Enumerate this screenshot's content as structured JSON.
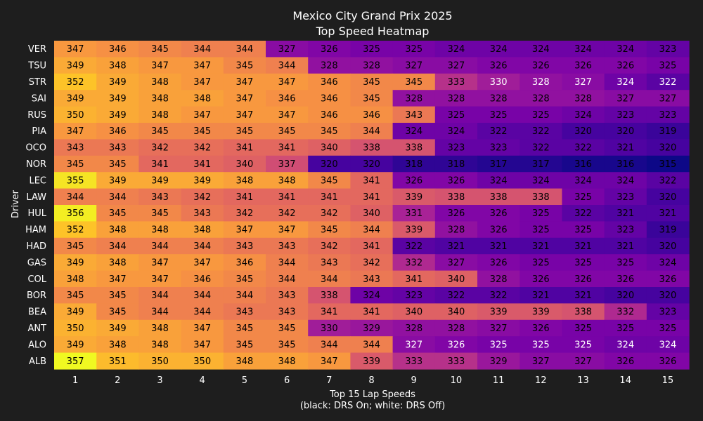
{
  "chart_data": {
    "type": "heatmap",
    "title": "Mexico City Grand Prix 2025",
    "subtitle": "Top Speed Heatmap",
    "xlabel": "Top 15 Lap Speeds",
    "xlabel_note": "(black: DRS On; white: DRS Off)",
    "ylabel": "Driver",
    "colormap": "plasma",
    "value_range": [
      315,
      357
    ],
    "x_categories": [
      "1",
      "2",
      "3",
      "4",
      "5",
      "6",
      "7",
      "8",
      "9",
      "10",
      "11",
      "12",
      "13",
      "14",
      "15"
    ],
    "y_categories": [
      "VER",
      "TSU",
      "STR",
      "SAI",
      "RUS",
      "PIA",
      "OCO",
      "NOR",
      "LEC",
      "LAW",
      "HUL",
      "HAM",
      "HAD",
      "GAS",
      "COL",
      "BOR",
      "BEA",
      "ANT",
      "ALO",
      "ALB"
    ],
    "values": [
      [
        347,
        346,
        345,
        344,
        344,
        327,
        326,
        325,
        325,
        324,
        324,
        324,
        324,
        324,
        323
      ],
      [
        349,
        348,
        347,
        347,
        345,
        344,
        328,
        328,
        327,
        327,
        326,
        326,
        326,
        326,
        325
      ],
      [
        352,
        349,
        348,
        347,
        347,
        347,
        346,
        345,
        345,
        333,
        330,
        328,
        327,
        324,
        322
      ],
      [
        349,
        349,
        348,
        348,
        347,
        346,
        346,
        345,
        328,
        328,
        328,
        328,
        328,
        327,
        327
      ],
      [
        350,
        349,
        348,
        347,
        347,
        347,
        346,
        346,
        343,
        325,
        325,
        325,
        324,
        323,
        323
      ],
      [
        347,
        346,
        345,
        345,
        345,
        345,
        345,
        344,
        324,
        324,
        322,
        322,
        320,
        320,
        319
      ],
      [
        343,
        343,
        342,
        342,
        341,
        341,
        340,
        338,
        338,
        323,
        323,
        322,
        322,
        321,
        320
      ],
      [
        345,
        345,
        341,
        341,
        340,
        337,
        320,
        320,
        318,
        318,
        317,
        317,
        316,
        316,
        315
      ],
      [
        355,
        349,
        349,
        349,
        348,
        348,
        345,
        341,
        326,
        326,
        324,
        324,
        324,
        324,
        322
      ],
      [
        344,
        344,
        343,
        342,
        341,
        341,
        341,
        341,
        339,
        338,
        338,
        338,
        325,
        323,
        320
      ],
      [
        356,
        345,
        345,
        343,
        342,
        342,
        342,
        340,
        331,
        326,
        326,
        325,
        322,
        321,
        321
      ],
      [
        352,
        348,
        348,
        348,
        347,
        347,
        345,
        344,
        339,
        328,
        326,
        325,
        325,
        323,
        319
      ],
      [
        345,
        344,
        344,
        344,
        343,
        343,
        342,
        341,
        322,
        321,
        321,
        321,
        321,
        321,
        320
      ],
      [
        349,
        348,
        347,
        347,
        346,
        344,
        343,
        342,
        332,
        327,
        326,
        325,
        325,
        325,
        324
      ],
      [
        348,
        347,
        347,
        346,
        345,
        344,
        344,
        343,
        341,
        340,
        328,
        326,
        326,
        326,
        326
      ],
      [
        345,
        345,
        344,
        344,
        344,
        343,
        338,
        324,
        323,
        322,
        322,
        321,
        321,
        320,
        320
      ],
      [
        349,
        345,
        344,
        344,
        343,
        343,
        341,
        341,
        340,
        340,
        339,
        339,
        338,
        332,
        323
      ],
      [
        350,
        349,
        348,
        347,
        345,
        345,
        330,
        329,
        328,
        328,
        327,
        326,
        325,
        325,
        325
      ],
      [
        349,
        348,
        348,
        347,
        345,
        345,
        344,
        344,
        327,
        326,
        325,
        325,
        325,
        324,
        324
      ],
      [
        357,
        351,
        350,
        350,
        348,
        348,
        347,
        339,
        333,
        333,
        329,
        327,
        327,
        326,
        326
      ]
    ],
    "drs_off": [
      [
        0,
        0,
        0,
        0,
        0,
        0,
        0,
        0,
        0,
        0,
        0,
        0,
        0,
        0,
        0
      ],
      [
        0,
        0,
        0,
        0,
        0,
        0,
        0,
        0,
        0,
        0,
        0,
        0,
        0,
        0,
        0
      ],
      [
        0,
        0,
        0,
        0,
        0,
        0,
        0,
        0,
        0,
        0,
        1,
        1,
        1,
        1,
        1
      ],
      [
        0,
        0,
        0,
        0,
        0,
        0,
        0,
        0,
        0,
        0,
        0,
        0,
        0,
        0,
        0
      ],
      [
        0,
        0,
        0,
        0,
        0,
        0,
        0,
        0,
        0,
        0,
        0,
        0,
        0,
        0,
        0
      ],
      [
        0,
        0,
        0,
        0,
        0,
        0,
        0,
        0,
        0,
        0,
        0,
        0,
        0,
        0,
        0
      ],
      [
        0,
        0,
        0,
        0,
        0,
        0,
        0,
        0,
        0,
        0,
        0,
        0,
        0,
        0,
        0
      ],
      [
        0,
        0,
        0,
        0,
        0,
        0,
        0,
        0,
        0,
        0,
        0,
        0,
        0,
        0,
        0
      ],
      [
        0,
        0,
        0,
        0,
        0,
        0,
        0,
        0,
        0,
        0,
        0,
        0,
        0,
        0,
        0
      ],
      [
        0,
        0,
        0,
        0,
        0,
        0,
        0,
        0,
        0,
        0,
        0,
        0,
        0,
        0,
        0
      ],
      [
        0,
        0,
        0,
        0,
        0,
        0,
        0,
        0,
        0,
        0,
        0,
        0,
        0,
        0,
        0
      ],
      [
        0,
        0,
        0,
        0,
        0,
        0,
        0,
        0,
        0,
        0,
        0,
        0,
        0,
        0,
        0
      ],
      [
        0,
        0,
        0,
        0,
        0,
        0,
        0,
        0,
        0,
        0,
        0,
        0,
        0,
        0,
        0
      ],
      [
        0,
        0,
        0,
        0,
        0,
        0,
        0,
        0,
        0,
        0,
        0,
        0,
        0,
        0,
        0
      ],
      [
        0,
        0,
        0,
        0,
        0,
        0,
        0,
        0,
        0,
        0,
        0,
        0,
        0,
        0,
        0
      ],
      [
        0,
        0,
        0,
        0,
        0,
        0,
        0,
        0,
        0,
        0,
        0,
        0,
        0,
        0,
        0
      ],
      [
        0,
        0,
        0,
        0,
        0,
        0,
        0,
        0,
        0,
        0,
        0,
        0,
        0,
        0,
        0
      ],
      [
        0,
        0,
        0,
        0,
        0,
        0,
        0,
        0,
        0,
        0,
        0,
        0,
        0,
        0,
        0
      ],
      [
        0,
        0,
        0,
        0,
        0,
        0,
        0,
        0,
        1,
        1,
        1,
        1,
        1,
        1,
        1
      ],
      [
        0,
        0,
        0,
        0,
        0,
        0,
        0,
        0,
        0,
        0,
        0,
        0,
        0,
        0,
        0
      ]
    ]
  }
}
